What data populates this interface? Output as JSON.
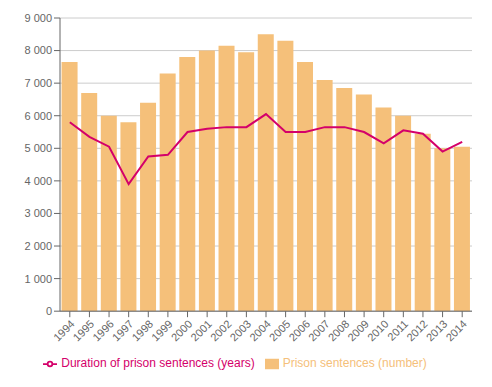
{
  "chart_data": {
    "type": "bar",
    "categories": [
      "1994",
      "1995",
      "1996",
      "1997",
      "1998",
      "1999",
      "2000",
      "2001",
      "2002",
      "2003",
      "2004",
      "2005",
      "2006",
      "2007",
      "2008",
      "2009",
      "2010",
      "2011",
      "2012",
      "2013",
      "2014"
    ],
    "series": [
      {
        "name": "Prison sentences (number)",
        "type": "bar",
        "color": "#f5c07a",
        "values": [
          7650,
          6700,
          6000,
          5800,
          6400,
          7300,
          7800,
          8000,
          8150,
          7950,
          8500,
          8300,
          7650,
          7100,
          6850,
          6650,
          6250,
          6000,
          5450,
          5000,
          5050
        ]
      },
      {
        "name": "Duration of prison sentences (years)",
        "type": "line",
        "color": "#d4006a",
        "values": [
          5800,
          5350,
          5050,
          3900,
          4750,
          4800,
          5500,
          5600,
          5650,
          5650,
          6050,
          5500,
          5500,
          5650,
          5650,
          5500,
          5150,
          5550,
          5450,
          4900,
          5200
        ]
      }
    ],
    "ylim": [
      0,
      9000
    ],
    "yticks": [
      0,
      {
        "value": 1000,
        "label": "1 000"
      },
      {
        "value": 2000,
        "label": "2 000"
      },
      {
        "value": 3000,
        "label": "3 000"
      },
      {
        "value": 4000,
        "label": "4 000"
      },
      {
        "value": 5000,
        "label": "5 000"
      },
      {
        "value": 6000,
        "label": "6 000"
      },
      {
        "value": 7000,
        "label": "7 000"
      },
      {
        "value": 8000,
        "label": "8 000"
      },
      {
        "value": 9000,
        "label": "9 000"
      }
    ],
    "grid": true,
    "legend": "bottom"
  }
}
